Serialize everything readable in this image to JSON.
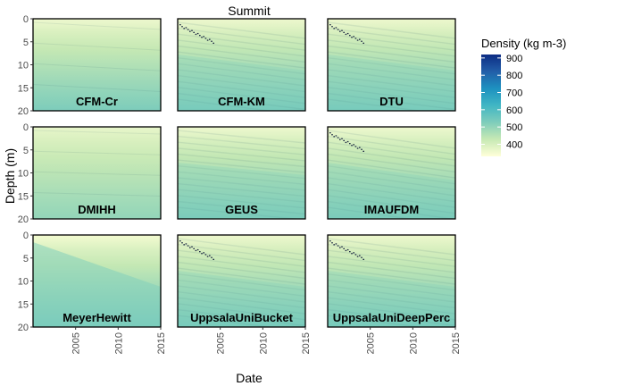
{
  "chart_data": {
    "type": "heatmap",
    "title": "Summit",
    "xlabel": "Date",
    "ylabel": "Depth (m)",
    "x_ticks": [
      "2005",
      "2010",
      "2015"
    ],
    "y_ticks": [
      "0",
      "5",
      "10",
      "15",
      "20"
    ],
    "xlim": [
      2000,
      2015
    ],
    "ylim": [
      0,
      20
    ],
    "y_reversed": true,
    "legend": {
      "title": "Density (kg m-3)",
      "ticks": [
        "900",
        "800",
        "700",
        "600",
        "500",
        "400"
      ],
      "tick_values": [
        900,
        800,
        700,
        600,
        500,
        400
      ],
      "range": [
        330,
        920
      ],
      "placement": "right",
      "colors": [
        "#ffffd9",
        "#c7e9b4",
        "#7fcdbb",
        "#41b6c4",
        "#1d91c0",
        "#225ea8",
        "#0c2c84"
      ]
    },
    "panels": [
      {
        "name": "CFM-Cr",
        "top": 360,
        "bottom": 530,
        "slope": 0.2,
        "layered": false,
        "spikes": false
      },
      {
        "name": "CFM-KM",
        "top": 360,
        "bottom": 545,
        "slope": 0.45,
        "layered": true,
        "spikes": true
      },
      {
        "name": "DTU",
        "top": 360,
        "bottom": 545,
        "slope": 0.45,
        "layered": true,
        "spikes": true
      },
      {
        "name": "DMIHH",
        "top": 370,
        "bottom": 500,
        "slope": 0.1,
        "layered": false,
        "spikes": false
      },
      {
        "name": "GEUS",
        "top": 360,
        "bottom": 540,
        "slope": 0.35,
        "layered": true,
        "spikes": false
      },
      {
        "name": "IMAUFDM",
        "top": 360,
        "bottom": 540,
        "slope": 0.5,
        "layered": true,
        "spikes": true
      },
      {
        "name": "MeyerHewitt",
        "top": 350,
        "bottom": 550,
        "slope": 0.0,
        "layered": false,
        "spikes": false
      },
      {
        "name": "UppsalaUniBucket",
        "top": 360,
        "bottom": 545,
        "slope": 0.45,
        "layered": true,
        "spikes": true
      },
      {
        "name": "UppsalaUniDeepPerc",
        "top": 360,
        "bottom": 545,
        "slope": 0.45,
        "layered": true,
        "spikes": true
      }
    ]
  }
}
